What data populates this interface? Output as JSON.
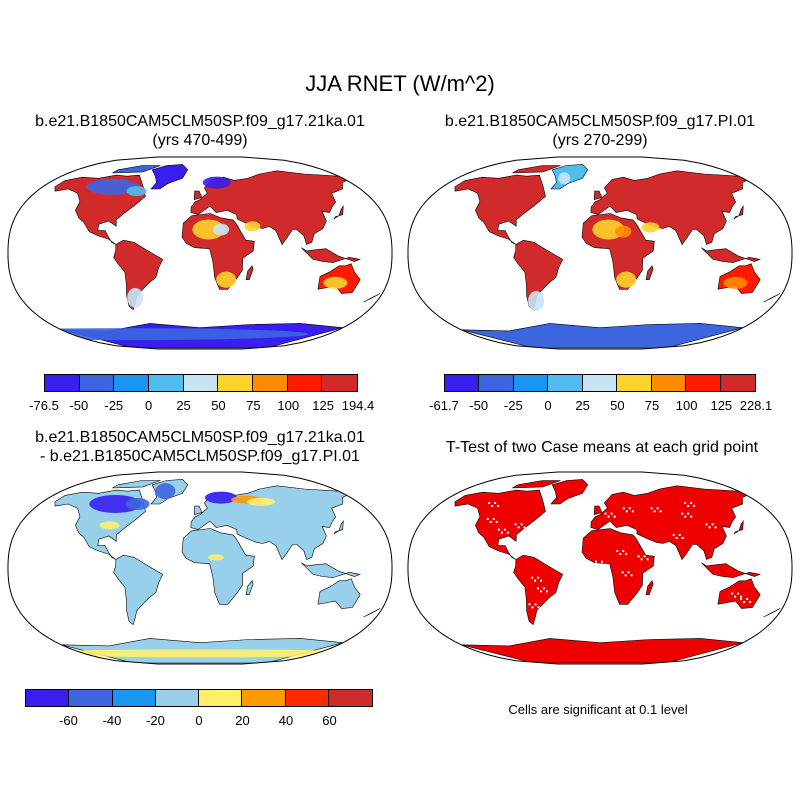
{
  "figure": {
    "title": "JJA RNET (W/m^2)",
    "panels": {
      "case1": {
        "title_line1": "b.e21.B1850CAM5CLM50SP.f09_g17.21ka.01",
        "title_line2": "(yrs 470-499)",
        "colorbar": {
          "labels": [
            "-76.5",
            "-50",
            "-25",
            "0",
            "25",
            "50",
            "75",
            "100",
            "125",
            "194.4"
          ],
          "colors": [
            "#3a1ef0",
            "#3c66e0",
            "#1a96f0",
            "#50bcf0",
            "#c8e4f4",
            "#ffd22c",
            "#ff8c00",
            "#ff1a00",
            "#d12a2a"
          ]
        }
      },
      "case2": {
        "title_line1": "b.e21.B1850CAM5CLM50SP.f09_g17.PI.01",
        "title_line2": "(yrs 270-299)",
        "colorbar": {
          "labels": [
            "-61.7",
            "-50",
            "-25",
            "0",
            "25",
            "50",
            "75",
            "100",
            "125",
            "228.1"
          ],
          "colors": [
            "#3a1ef0",
            "#3c66e0",
            "#1a96f0",
            "#50bcf0",
            "#c8e4f4",
            "#ffd22c",
            "#ff8c00",
            "#ff1a00",
            "#d12a2a"
          ]
        }
      },
      "difference": {
        "title_line1": "b.e21.B1850CAM5CLM50SP.f09_g17.21ka.01",
        "title_line2": "- b.e21.B1850CAM5CLM50SP.f09_g17.PI.01",
        "colorbar": {
          "labels": [
            "-60",
            "-40",
            "-20",
            "0",
            "20",
            "40",
            "60"
          ],
          "colors": [
            "#3a1ef0",
            "#3c66e0",
            "#1a96f0",
            "#98cfea",
            "#fff06a",
            "#ff9a00",
            "#ff2a00",
            "#d12a2a"
          ]
        }
      },
      "ttest": {
        "title": "T-Test of two Case means at each grid point",
        "note": "Cells are significant at 0.1 level",
        "fill_color": "#ee0000"
      }
    },
    "colors": {
      "ocean": "#ffffff",
      "coastline": "#000000"
    }
  }
}
